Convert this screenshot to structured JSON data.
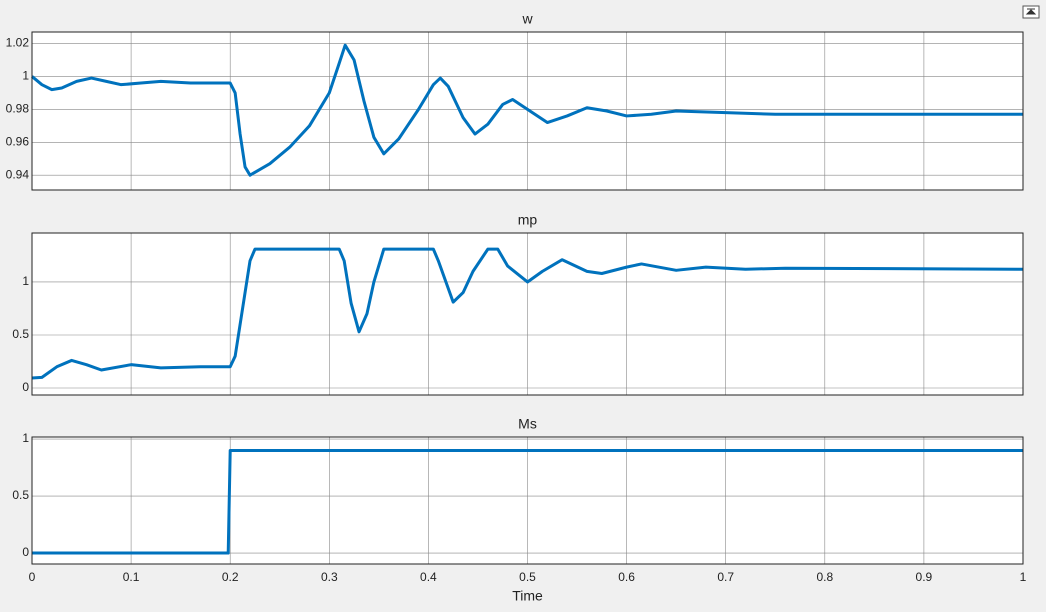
{
  "chart_data": [
    {
      "type": "line",
      "title": "w",
      "xlim": [
        0,
        1
      ],
      "xticks": [
        0,
        0.1,
        0.2,
        0.3,
        0.4,
        0.5,
        0.6,
        0.7,
        0.8,
        0.9,
        1
      ],
      "ylim": [
        0.931,
        1.027
      ],
      "yticks": [
        0.94,
        0.96,
        0.98,
        1,
        1.02
      ],
      "grid": true,
      "x": [
        0,
        0.01,
        0.02,
        0.03,
        0.045,
        0.06,
        0.075,
        0.09,
        0.11,
        0.13,
        0.16,
        0.2,
        0.205,
        0.21,
        0.215,
        0.22,
        0.24,
        0.26,
        0.28,
        0.3,
        0.31,
        0.316,
        0.325,
        0.335,
        0.345,
        0.355,
        0.37,
        0.39,
        0.405,
        0.412,
        0.42,
        0.435,
        0.447,
        0.46,
        0.475,
        0.485,
        0.5,
        0.52,
        0.54,
        0.56,
        0.58,
        0.6,
        0.625,
        0.65,
        0.7,
        0.75,
        0.8,
        1
      ],
      "series": [
        {
          "color": "#0072bd",
          "values": [
            1.0,
            0.995,
            0.992,
            0.993,
            0.997,
            0.999,
            0.997,
            0.995,
            0.996,
            0.997,
            0.996,
            0.996,
            0.99,
            0.965,
            0.945,
            0.94,
            0.947,
            0.957,
            0.97,
            0.99,
            1.008,
            1.019,
            1.01,
            0.985,
            0.963,
            0.953,
            0.962,
            0.98,
            0.995,
            0.999,
            0.994,
            0.975,
            0.965,
            0.971,
            0.983,
            0.986,
            0.98,
            0.972,
            0.976,
            0.981,
            0.979,
            0.976,
            0.977,
            0.979,
            0.978,
            0.977,
            0.977,
            0.977
          ]
        }
      ]
    },
    {
      "type": "line",
      "title": "mp",
      "xlim": [
        0,
        1
      ],
      "xticks": [
        0,
        0.1,
        0.2,
        0.3,
        0.4,
        0.5,
        0.6,
        0.7,
        0.8,
        0.9,
        1
      ],
      "ylim": [
        -0.066,
        1.462
      ],
      "yticks": [
        0,
        0.5,
        1
      ],
      "grid": true,
      "x": [
        0,
        0.01,
        0.025,
        0.04,
        0.055,
        0.07,
        0.1,
        0.13,
        0.17,
        0.2,
        0.205,
        0.22,
        0.225,
        0.31,
        0.315,
        0.322,
        0.33,
        0.338,
        0.345,
        0.355,
        0.405,
        0.41,
        0.425,
        0.435,
        0.445,
        0.46,
        0.47,
        0.48,
        0.5,
        0.515,
        0.535,
        0.56,
        0.575,
        0.6,
        0.615,
        0.65,
        0.68,
        0.72,
        0.76,
        1
      ],
      "series": [
        {
          "color": "#0072bd",
          "values": [
            0.094,
            0.1,
            0.2,
            0.26,
            0.22,
            0.17,
            0.22,
            0.19,
            0.2,
            0.2,
            0.3,
            1.2,
            1.31,
            1.31,
            1.2,
            0.8,
            0.53,
            0.7,
            1.0,
            1.31,
            1.31,
            1.2,
            0.81,
            0.9,
            1.1,
            1.31,
            1.31,
            1.15,
            1.0,
            1.1,
            1.21,
            1.1,
            1.08,
            1.14,
            1.17,
            1.11,
            1.14,
            1.12,
            1.13,
            1.12
          ]
        }
      ]
    },
    {
      "type": "line",
      "title": "Ms",
      "xlabel": "Time",
      "xlim": [
        0,
        1
      ],
      "xticks": [
        0,
        0.1,
        0.2,
        0.3,
        0.4,
        0.5,
        0.6,
        0.7,
        0.8,
        0.9,
        1
      ],
      "ylim": [
        -0.096,
        1.018
      ],
      "yticks": [
        0,
        0.5,
        1
      ],
      "grid": true,
      "x": [
        0,
        0.198,
        0.2,
        1
      ],
      "series": [
        {
          "color": "#0072bd",
          "values": [
            0,
            0,
            0.9,
            0.9
          ]
        }
      ]
    }
  ]
}
